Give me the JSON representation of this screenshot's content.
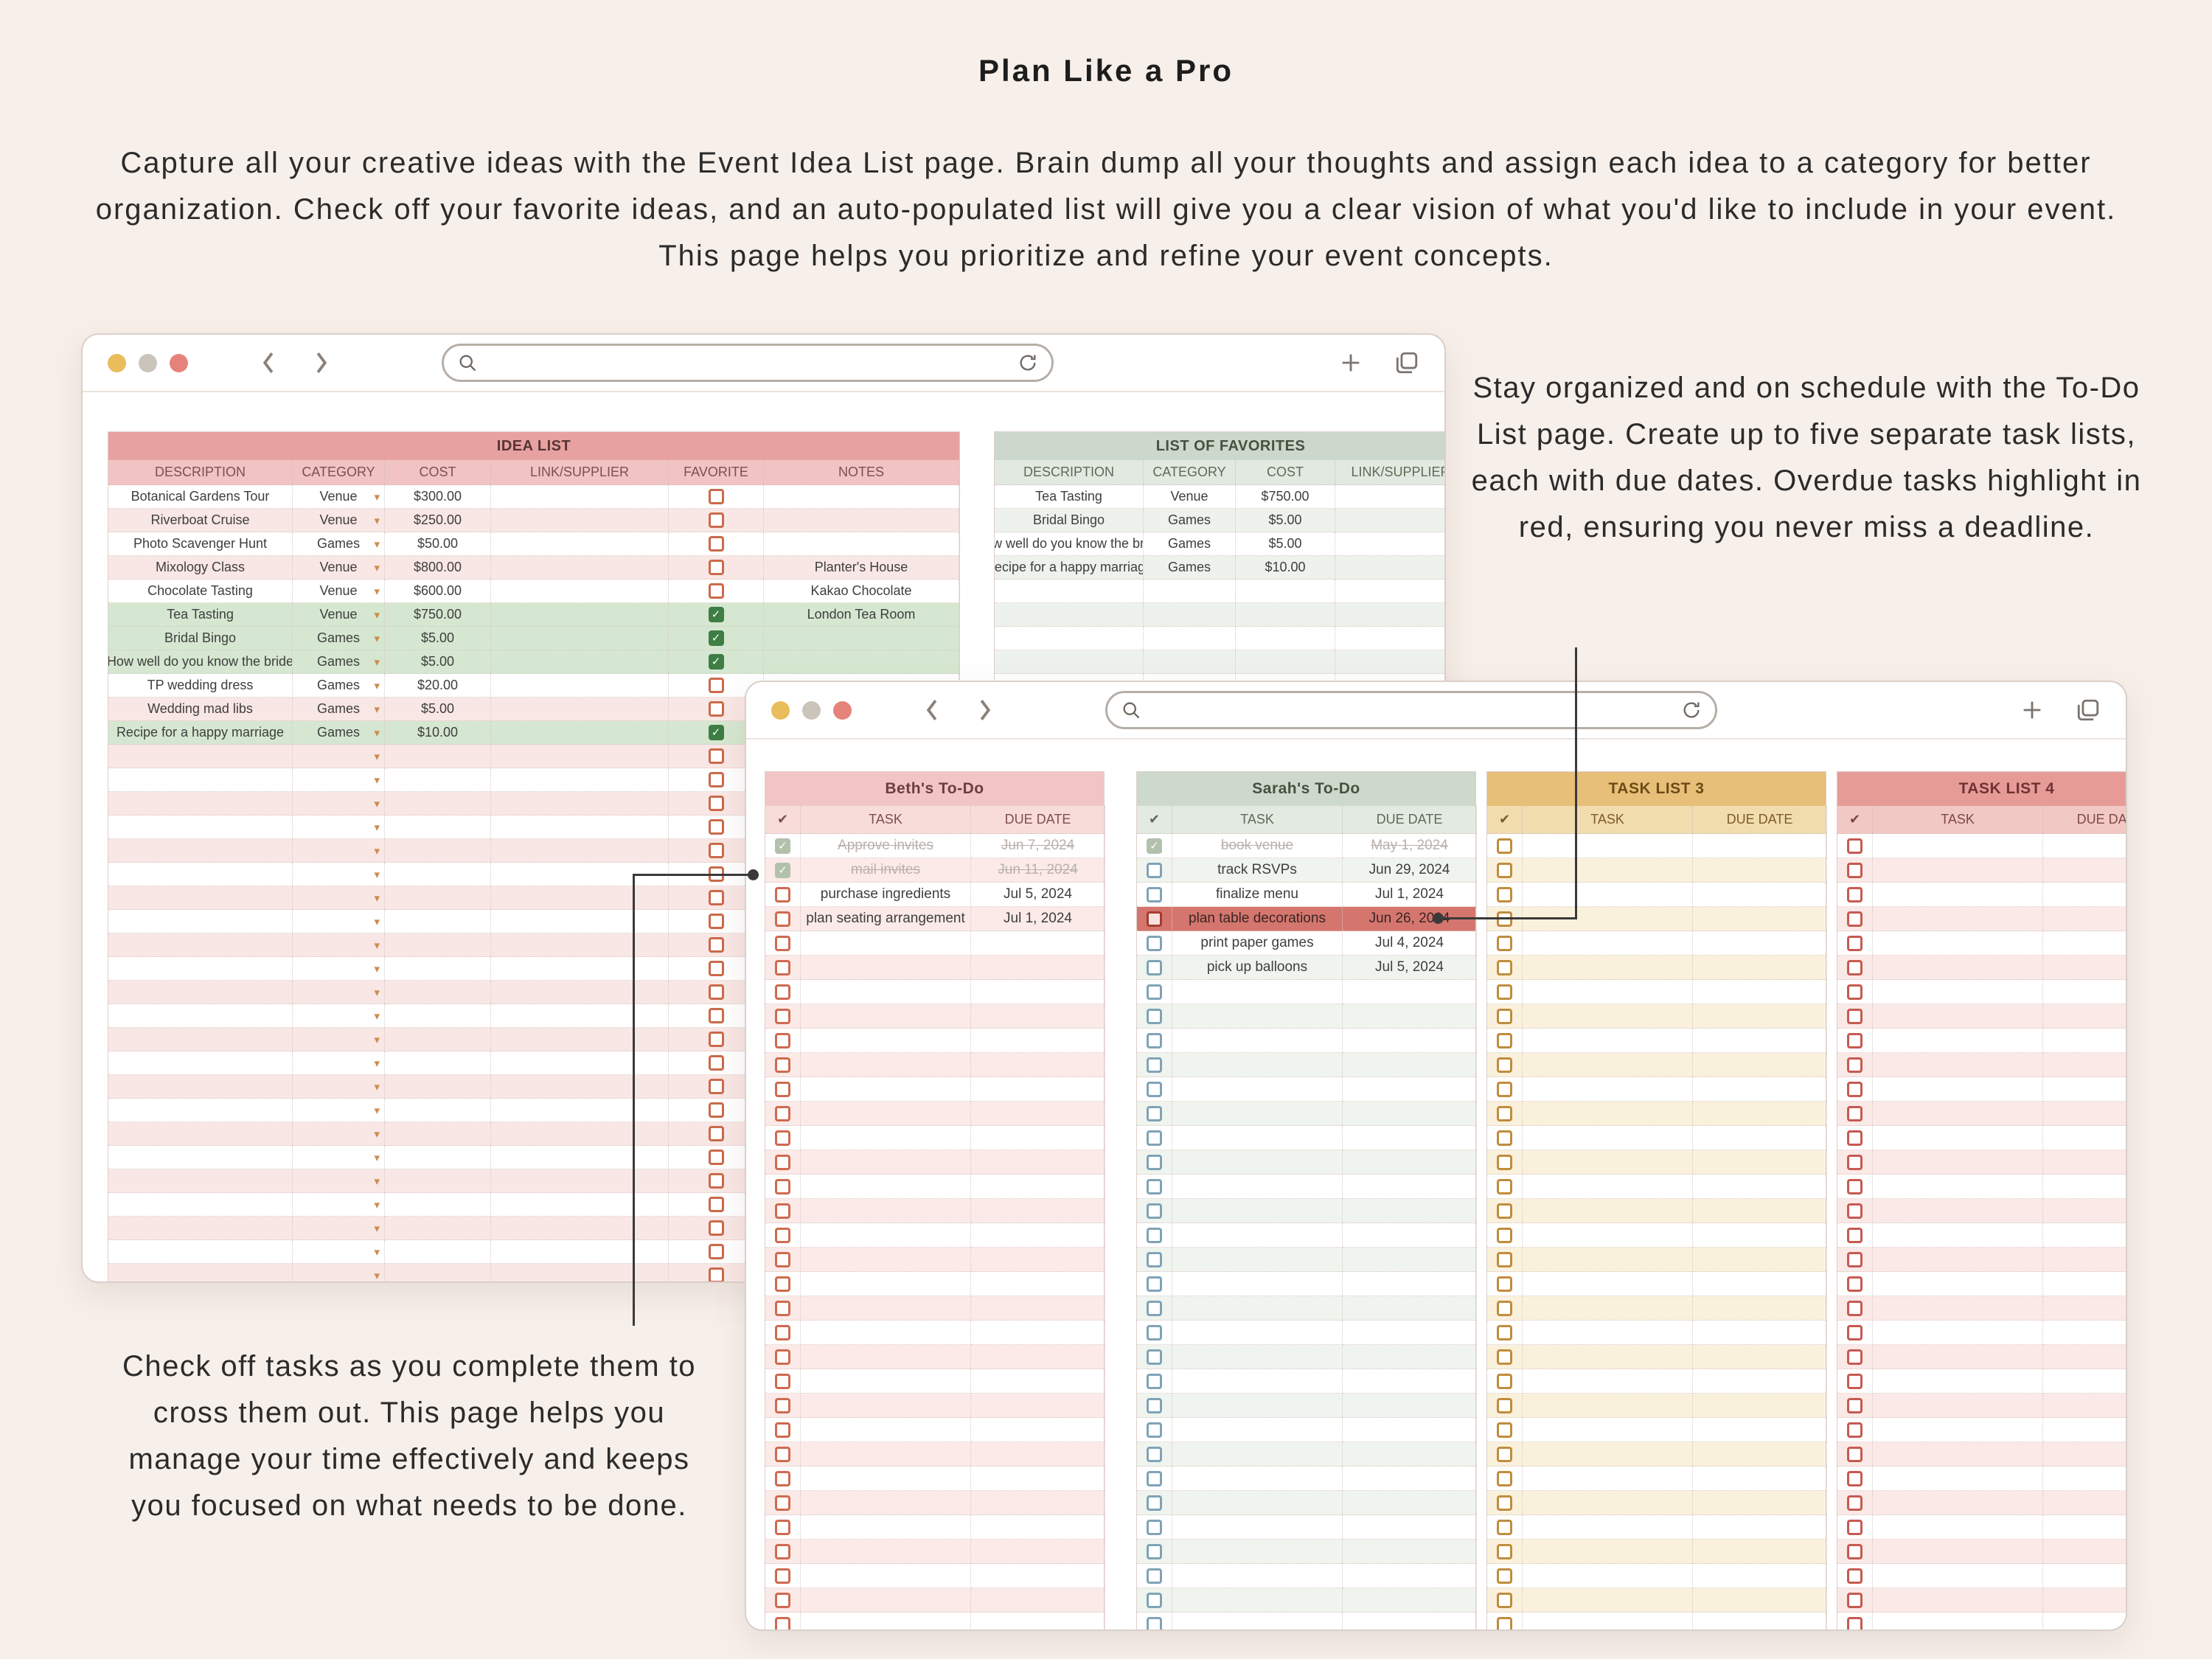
{
  "title": "Plan Like a Pro",
  "intro": "Capture all your creative ideas with the Event Idea List page. Brain dump all your thoughts and assign each idea to a category for better organization. Check off your favorite ideas, and an auto-populated list will give you a clear vision of what you'd like to include in your event. This page helps you prioritize and refine your event concepts.",
  "notes": {
    "todo": "Stay organized and on schedule with the To-Do List page. Create up to five separate task lists, each with due dates. Overdue tasks highlight in red, ensuring you never miss a deadline.",
    "check_off": "Check off tasks as you complete them to cross them out. This page helps you manage your time effectively and keeps you focused on what needs to be done."
  },
  "browser": {
    "address_value": "",
    "address_placeholder": ""
  },
  "icons": {
    "check": "✓",
    "dropdown_arrow": "▾",
    "header_check": "✔"
  },
  "colors": {
    "background": "#f7efe9",
    "annotation": "#3a3a3a",
    "overdue_bg": "#d4766d",
    "favorite_checked": "#3e7d44",
    "done_checkbox": "#b2c1ac",
    "window_border": "#d9d0ca"
  },
  "idea_window": {
    "idea_list": {
      "title": "IDEA LIST",
      "columns": [
        "DESCRIPTION",
        "CATEGORY",
        "COST",
        "LINK/SUPPLIER",
        "FAVORITE",
        "NOTES"
      ],
      "colors": {
        "header_bg": "#e8a1a1",
        "header_text": "#563434",
        "subheader_bg": "#f2c3c3",
        "subheader_text": "#7d4f4f",
        "row_alt": "#f9e7e5",
        "favorite_row": "#d5e7d0",
        "checkbox": "#cb6a4a"
      },
      "rows": [
        [
          "Botanical Gardens Tour",
          "Venue",
          "$300.00",
          "",
          false,
          ""
        ],
        [
          "Riverboat Cruise",
          "Venue",
          "$250.00",
          "",
          false,
          ""
        ],
        [
          "Photo Scavenger Hunt",
          "Games",
          "$50.00",
          "",
          false,
          ""
        ],
        [
          "Mixology Class",
          "Venue",
          "$800.00",
          "",
          false,
          "Planter's House"
        ],
        [
          "Chocolate Tasting",
          "Venue",
          "$600.00",
          "",
          false,
          "Kakao Chocolate"
        ],
        [
          "Tea Tasting",
          "Venue",
          "$750.00",
          "",
          true,
          "London Tea Room"
        ],
        [
          "Bridal Bingo",
          "Games",
          "$5.00",
          "",
          true,
          ""
        ],
        [
          "How well do you know the bride",
          "Games",
          "$5.00",
          "",
          true,
          ""
        ],
        [
          "TP wedding dress",
          "Games",
          "$20.00",
          "",
          false,
          ""
        ],
        [
          "Wedding mad libs",
          "Games",
          "$5.00",
          "",
          false,
          ""
        ],
        [
          "Recipe for a happy marriage",
          "Games",
          "$10.00",
          "",
          true,
          ""
        ]
      ],
      "empty_rows": 23
    },
    "favorites": {
      "title": "LIST OF FAVORITES",
      "columns": [
        "DESCRIPTION",
        "CATEGORY",
        "COST",
        "LINK/SUPPLIER"
      ],
      "colors": {
        "header_bg": "#ccd8cb",
        "header_text": "#45523f",
        "subheader_bg": "#e2e9e0",
        "subheader_text": "#5d6b57",
        "row_alt": "#eef2ec"
      },
      "rows": [
        [
          "Tea Tasting",
          "Venue",
          "$750.00",
          ""
        ],
        [
          "Bridal Bingo",
          "Games",
          "$5.00",
          ""
        ],
        [
          "How well do you know the bride",
          "Games",
          "$5.00",
          ""
        ],
        [
          "Recipe for a happy marriage",
          "Games",
          "$10.00",
          ""
        ]
      ],
      "empty_rows": 7
    }
  },
  "todo_window": {
    "lists": [
      {
        "title": "Beth's To-Do",
        "columns": [
          "✔",
          "TASK",
          "DUE DATE"
        ],
        "colors": {
          "header_bg": "#f2c5c5",
          "header_text": "#6e3d3d",
          "subheader_bg": "#f8dcda",
          "subheader_text": "#7d4f4f",
          "row_alt": "#fbeae8",
          "checkbox": "#cf6a4f"
        },
        "tasks": [
          {
            "done": true,
            "task": "Approve invites",
            "due": "Jun 7, 2024"
          },
          {
            "done": true,
            "task": "mail invites",
            "due": "Jun 11, 2024"
          },
          {
            "done": false,
            "task": "purchase ingredients",
            "due": "Jul 5, 2024"
          },
          {
            "done": false,
            "task": "plan seating arrangement",
            "due": "Jul 1, 2024"
          }
        ],
        "total_rows": 33
      },
      {
        "title": "Sarah's To-Do",
        "columns": [
          "✔",
          "TASK",
          "DUE DATE"
        ],
        "colors": {
          "header_bg": "#cdd9cc",
          "header_text": "#44523e",
          "subheader_bg": "#e3eae1",
          "subheader_text": "#5d6b57",
          "row_alt": "#f0f4ee",
          "checkbox": "#7fa3b8"
        },
        "tasks": [
          {
            "done": true,
            "task": "book venue",
            "due": "May 1, 2024"
          },
          {
            "done": false,
            "task": "track RSVPs",
            "due": "Jun 29, 2024"
          },
          {
            "done": false,
            "task": "finalize menu",
            "due": "Jul 1, 2024"
          },
          {
            "done": false,
            "task": "plan table decorations",
            "due": "Jun 26, 2024",
            "overdue": true
          },
          {
            "done": false,
            "task": "print paper games",
            "due": "Jul 4, 2024"
          },
          {
            "done": false,
            "task": "pick up balloons",
            "due": "Jul 5, 2024"
          }
        ],
        "total_rows": 33
      },
      {
        "title": "TASK LIST 3",
        "columns": [
          "✔",
          "TASK",
          "DUE DATE"
        ],
        "colors": {
          "header_bg": "#e7bf78",
          "header_text": "#6b4c18",
          "subheader_bg": "#f1dcae",
          "subheader_text": "#7d5c28",
          "row_alt": "#faf1dc",
          "checkbox": "#c08c3e"
        },
        "tasks": [],
        "total_rows": 33
      },
      {
        "title": "TASK LIST 4",
        "columns": [
          "✔",
          "TASK",
          "DUE DATE"
        ],
        "colors": {
          "header_bg": "#e79b97",
          "header_text": "#6e3434",
          "subheader_bg": "#f2c8c5",
          "subheader_text": "#7d4848",
          "row_alt": "#fbe9e7",
          "checkbox": "#c65a50"
        },
        "tasks": [],
        "total_rows": 33
      }
    ]
  }
}
